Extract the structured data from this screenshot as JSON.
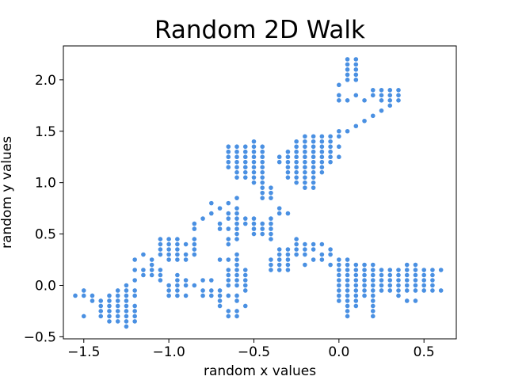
{
  "chart_data": {
    "type": "scatter",
    "title": "Random 2D Walk",
    "xlabel": "random x values",
    "ylabel": "random y values",
    "xlim": [
      -1.62,
      0.69
    ],
    "ylim": [
      -0.52,
      2.33
    ],
    "xticks": [
      -1.5,
      -1.0,
      -0.5,
      0.0,
      0.5
    ],
    "xtick_labels": [
      "−1.5",
      "−1.0",
      "−0.5",
      "0.0",
      "0.5"
    ],
    "yticks": [
      -0.5,
      0.0,
      0.5,
      1.0,
      1.5,
      2.0
    ],
    "ytick_labels": [
      "−0.5",
      "0.0",
      "0.5",
      "1.0",
      "1.5",
      "2.0"
    ],
    "grid": false,
    "marker_color": "#4a90e2",
    "points": [
      [
        -1.55,
        -0.1
      ],
      [
        -1.5,
        -0.05
      ],
      [
        -1.5,
        -0.1
      ],
      [
        -1.5,
        -0.3
      ],
      [
        -1.45,
        -0.1
      ],
      [
        -1.45,
        -0.15
      ],
      [
        -1.4,
        -0.15
      ],
      [
        -1.4,
        -0.2
      ],
      [
        -1.4,
        -0.25
      ],
      [
        -1.4,
        -0.3
      ],
      [
        -1.35,
        -0.1
      ],
      [
        -1.35,
        -0.15
      ],
      [
        -1.35,
        -0.2
      ],
      [
        -1.35,
        -0.25
      ],
      [
        -1.35,
        -0.3
      ],
      [
        -1.35,
        -0.35
      ],
      [
        -1.3,
        -0.05
      ],
      [
        -1.3,
        -0.1
      ],
      [
        -1.3,
        -0.15
      ],
      [
        -1.3,
        -0.2
      ],
      [
        -1.3,
        -0.25
      ],
      [
        -1.3,
        -0.3
      ],
      [
        -1.3,
        -0.35
      ],
      [
        -1.25,
        0.0
      ],
      [
        -1.25,
        -0.05
      ],
      [
        -1.25,
        -0.1
      ],
      [
        -1.25,
        -0.15
      ],
      [
        -1.25,
        -0.2
      ],
      [
        -1.25,
        -0.25
      ],
      [
        -1.25,
        -0.3
      ],
      [
        -1.25,
        -0.35
      ],
      [
        -1.25,
        -0.4
      ],
      [
        -1.2,
        -0.05
      ],
      [
        -1.2,
        -0.1
      ],
      [
        -1.2,
        -0.2
      ],
      [
        -1.2,
        -0.25
      ],
      [
        -1.2,
        -0.3
      ],
      [
        -1.2,
        -0.35
      ],
      [
        -1.2,
        0.05
      ],
      [
        -1.2,
        0.15
      ],
      [
        -1.2,
        0.25
      ],
      [
        -1.15,
        0.1
      ],
      [
        -1.15,
        0.15
      ],
      [
        -1.15,
        0.3
      ],
      [
        -1.1,
        0.1
      ],
      [
        -1.1,
        0.15
      ],
      [
        -1.1,
        0.2
      ],
      [
        -1.1,
        0.25
      ],
      [
        -1.05,
        0.3
      ],
      [
        -1.05,
        0.35
      ],
      [
        -1.05,
        0.4
      ],
      [
        -1.05,
        0.05
      ],
      [
        -1.05,
        0.1
      ],
      [
        -1.05,
        0.15
      ],
      [
        -1.0,
        0.0
      ],
      [
        -1.0,
        -0.05
      ],
      [
        -1.0,
        -0.1
      ],
      [
        -1.05,
        0.45
      ],
      [
        -1.0,
        0.45
      ],
      [
        -0.95,
        0.45
      ],
      [
        -1.0,
        0.25
      ],
      [
        -1.0,
        0.3
      ],
      [
        -1.0,
        0.35
      ],
      [
        -1.0,
        0.4
      ],
      [
        -0.95,
        0.25
      ],
      [
        -0.95,
        0.3
      ],
      [
        -0.95,
        0.35
      ],
      [
        -0.95,
        0.4
      ],
      [
        -0.9,
        0.25
      ],
      [
        -0.9,
        0.3
      ],
      [
        -0.9,
        0.4
      ],
      [
        -0.95,
        0.05
      ],
      [
        -0.95,
        0.1
      ],
      [
        -0.95,
        0.0
      ],
      [
        -0.95,
        -0.05
      ],
      [
        -0.95,
        -0.1
      ],
      [
        -0.9,
        0.0
      ],
      [
        -0.9,
        0.05
      ],
      [
        -0.9,
        -0.1
      ],
      [
        -0.85,
        0.3
      ],
      [
        -0.85,
        0.35
      ],
      [
        -0.85,
        0.4
      ],
      [
        -0.85,
        0.45
      ],
      [
        -0.85,
        0.55
      ],
      [
        -0.85,
        0.6
      ],
      [
        -0.85,
        0.0
      ],
      [
        -0.8,
        0.05
      ],
      [
        -0.75,
        0.05
      ],
      [
        -0.8,
        0.65
      ],
      [
        -0.75,
        0.7
      ],
      [
        -0.7,
        0.75
      ],
      [
        -0.65,
        0.8
      ],
      [
        -0.6,
        0.85
      ],
      [
        -0.75,
        0.8
      ],
      [
        -0.7,
        0.55
      ],
      [
        -0.65,
        0.55
      ],
      [
        -0.7,
        0.25
      ],
      [
        -0.65,
        0.25
      ],
      [
        -0.65,
        0.65
      ],
      [
        -0.65,
        0.7
      ],
      [
        -0.6,
        0.6
      ],
      [
        -0.6,
        0.65
      ],
      [
        -0.6,
        0.7
      ],
      [
        -0.6,
        0.75
      ],
      [
        -0.55,
        0.6
      ],
      [
        -0.55,
        0.65
      ],
      [
        -0.65,
        0.45
      ],
      [
        -0.65,
        0.4
      ],
      [
        -0.6,
        0.45
      ],
      [
        -0.6,
        0.5
      ],
      [
        -0.6,
        0.55
      ],
      [
        -0.65,
        0.0
      ],
      [
        -0.65,
        0.05
      ],
      [
        -0.65,
        0.1
      ],
      [
        -0.65,
        0.15
      ],
      [
        -0.6,
        0.0
      ],
      [
        -0.6,
        0.05
      ],
      [
        -0.6,
        0.1
      ],
      [
        -0.6,
        0.15
      ],
      [
        -0.6,
        0.2
      ],
      [
        -0.6,
        0.25
      ],
      [
        -0.6,
        0.3
      ],
      [
        -0.55,
        0.0
      ],
      [
        -0.55,
        0.05
      ],
      [
        -0.55,
        0.1
      ],
      [
        -0.55,
        0.15
      ],
      [
        -0.55,
        -0.05
      ],
      [
        -0.6,
        -0.1
      ],
      [
        -0.6,
        -0.15
      ],
      [
        -0.65,
        -0.1
      ],
      [
        -0.7,
        -0.1
      ],
      [
        -0.75,
        -0.1
      ],
      [
        -0.8,
        -0.1
      ],
      [
        -0.8,
        -0.05
      ],
      [
        -0.75,
        -0.05
      ],
      [
        -0.7,
        -0.05
      ],
      [
        -0.7,
        -0.15
      ],
      [
        -0.7,
        -0.2
      ],
      [
        -0.65,
        -0.25
      ],
      [
        -0.6,
        -0.25
      ],
      [
        -0.65,
        -0.3
      ],
      [
        -0.6,
        -0.3
      ],
      [
        -0.55,
        -0.2
      ],
      [
        -0.7,
        0.6
      ],
      [
        -0.65,
        1.2
      ],
      [
        -0.65,
        1.15
      ],
      [
        -0.65,
        1.25
      ],
      [
        -0.65,
        1.3
      ],
      [
        -0.65,
        1.35
      ],
      [
        -0.6,
        1.05
      ],
      [
        -0.6,
        1.1
      ],
      [
        -0.6,
        1.15
      ],
      [
        -0.6,
        1.2
      ],
      [
        -0.6,
        1.25
      ],
      [
        -0.6,
        1.3
      ],
      [
        -0.6,
        1.35
      ],
      [
        -0.55,
        1.05
      ],
      [
        -0.55,
        1.1
      ],
      [
        -0.55,
        1.15
      ],
      [
        -0.55,
        1.2
      ],
      [
        -0.55,
        1.25
      ],
      [
        -0.55,
        1.3
      ],
      [
        -0.55,
        1.35
      ],
      [
        -0.5,
        1.0
      ],
      [
        -0.5,
        1.05
      ],
      [
        -0.5,
        1.1
      ],
      [
        -0.5,
        1.15
      ],
      [
        -0.5,
        1.2
      ],
      [
        -0.5,
        1.25
      ],
      [
        -0.5,
        1.3
      ],
      [
        -0.5,
        1.35
      ],
      [
        -0.5,
        1.4
      ],
      [
        -0.45,
        0.95
      ],
      [
        -0.45,
        1.0
      ],
      [
        -0.45,
        1.05
      ],
      [
        -0.45,
        1.1
      ],
      [
        -0.45,
        1.15
      ],
      [
        -0.45,
        1.2
      ],
      [
        -0.45,
        1.25
      ],
      [
        -0.45,
        1.3
      ],
      [
        -0.45,
        1.35
      ],
      [
        -0.45,
        0.85
      ],
      [
        -0.45,
        0.9
      ],
      [
        -0.4,
        0.9
      ],
      [
        -0.4,
        0.95
      ],
      [
        -0.4,
        0.85
      ],
      [
        -0.5,
        0.6
      ],
      [
        -0.5,
        0.65
      ],
      [
        -0.45,
        0.6
      ],
      [
        -0.45,
        0.55
      ],
      [
        -0.4,
        0.55
      ],
      [
        -0.4,
        0.6
      ],
      [
        -0.4,
        0.65
      ],
      [
        -0.35,
        0.7
      ],
      [
        -0.35,
        0.75
      ],
      [
        -0.3,
        0.7
      ],
      [
        -0.5,
        0.55
      ],
      [
        -0.5,
        0.5
      ],
      [
        -0.45,
        0.5
      ],
      [
        -0.4,
        0.45
      ],
      [
        -0.4,
        0.5
      ],
      [
        -0.4,
        0.25
      ],
      [
        -0.35,
        0.25
      ],
      [
        -0.3,
        0.25
      ],
      [
        -0.4,
        0.2
      ],
      [
        -0.4,
        0.15
      ],
      [
        -0.35,
        0.15
      ],
      [
        -0.35,
        0.2
      ],
      [
        -0.3,
        0.15
      ],
      [
        -0.3,
        0.2
      ],
      [
        -0.35,
        0.3
      ],
      [
        -0.35,
        0.35
      ],
      [
        -0.3,
        0.3
      ],
      [
        -0.3,
        0.35
      ],
      [
        -0.25,
        0.3
      ],
      [
        -0.25,
        0.35
      ],
      [
        -0.25,
        0.4
      ],
      [
        -0.25,
        0.45
      ],
      [
        -0.2,
        0.4
      ],
      [
        -0.2,
        0.35
      ],
      [
        -0.2,
        0.3
      ],
      [
        -0.2,
        0.2
      ],
      [
        -0.15,
        0.25
      ],
      [
        -0.15,
        0.4
      ],
      [
        -0.15,
        0.35
      ],
      [
        -0.1,
        0.3
      ],
      [
        -0.1,
        0.25
      ],
      [
        -0.1,
        0.4
      ],
      [
        -0.05,
        0.35
      ],
      [
        -0.05,
        0.3
      ],
      [
        -0.05,
        0.2
      ],
      [
        0.0,
        0.25
      ],
      [
        0.0,
        0.2
      ],
      [
        0.0,
        0.15
      ],
      [
        0.0,
        0.1
      ],
      [
        0.0,
        0.05
      ],
      [
        0.0,
        0.0
      ],
      [
        0.0,
        -0.05
      ],
      [
        0.0,
        -0.1
      ],
      [
        0.0,
        -0.15
      ],
      [
        0.05,
        0.25
      ],
      [
        0.05,
        0.2
      ],
      [
        0.05,
        0.15
      ],
      [
        0.05,
        0.1
      ],
      [
        0.05,
        0.05
      ],
      [
        0.05,
        0.0
      ],
      [
        0.05,
        -0.05
      ],
      [
        0.05,
        -0.1
      ],
      [
        0.05,
        -0.15
      ],
      [
        0.05,
        -0.2
      ],
      [
        0.05,
        -0.25
      ],
      [
        0.05,
        -0.3
      ],
      [
        0.1,
        0.2
      ],
      [
        0.1,
        0.15
      ],
      [
        0.1,
        0.1
      ],
      [
        0.1,
        0.05
      ],
      [
        0.1,
        0.0
      ],
      [
        0.1,
        -0.05
      ],
      [
        0.1,
        -0.1
      ],
      [
        0.1,
        -0.15
      ],
      [
        0.1,
        -0.2
      ],
      [
        0.15,
        0.2
      ],
      [
        0.15,
        0.15
      ],
      [
        0.15,
        0.1
      ],
      [
        0.15,
        0.05
      ],
      [
        0.15,
        0.0
      ],
      [
        0.15,
        -0.05
      ],
      [
        0.15,
        -0.1
      ],
      [
        0.2,
        0.2
      ],
      [
        0.2,
        0.15
      ],
      [
        0.2,
        0.1
      ],
      [
        0.2,
        0.05
      ],
      [
        0.2,
        0.0
      ],
      [
        0.2,
        -0.05
      ],
      [
        0.2,
        -0.1
      ],
      [
        0.2,
        -0.15
      ],
      [
        0.2,
        -0.2
      ],
      [
        0.2,
        -0.25
      ],
      [
        0.2,
        -0.3
      ],
      [
        0.25,
        0.15
      ],
      [
        0.25,
        0.1
      ],
      [
        0.25,
        0.05
      ],
      [
        0.25,
        0.0
      ],
      [
        0.25,
        -0.05
      ],
      [
        0.3,
        0.15
      ],
      [
        0.3,
        0.1
      ],
      [
        0.3,
        0.05
      ],
      [
        0.3,
        0.0
      ],
      [
        0.3,
        -0.05
      ],
      [
        0.35,
        0.15
      ],
      [
        0.35,
        0.1
      ],
      [
        0.35,
        0.05
      ],
      [
        0.35,
        0.0
      ],
      [
        0.35,
        -0.05
      ],
      [
        0.35,
        -0.1
      ],
      [
        0.4,
        0.2
      ],
      [
        0.4,
        0.15
      ],
      [
        0.4,
        0.1
      ],
      [
        0.4,
        0.05
      ],
      [
        0.4,
        0.0
      ],
      [
        0.4,
        -0.05
      ],
      [
        0.4,
        -0.15
      ],
      [
        0.45,
        0.2
      ],
      [
        0.45,
        0.15
      ],
      [
        0.45,
        0.1
      ],
      [
        0.45,
        0.05
      ],
      [
        0.45,
        0.0
      ],
      [
        0.45,
        -0.05
      ],
      [
        0.45,
        -0.15
      ],
      [
        0.5,
        0.15
      ],
      [
        0.5,
        0.1
      ],
      [
        0.5,
        0.05
      ],
      [
        0.5,
        0.0
      ],
      [
        0.5,
        -0.05
      ],
      [
        0.55,
        0.15
      ],
      [
        0.55,
        0.1
      ],
      [
        0.55,
        0.05
      ],
      [
        0.55,
        0.0
      ],
      [
        0.55,
        -0.05
      ],
      [
        0.6,
        0.15
      ],
      [
        0.6,
        -0.05
      ],
      [
        -0.35,
        1.2
      ],
      [
        -0.35,
        1.25
      ],
      [
        -0.3,
        1.15
      ],
      [
        -0.3,
        1.2
      ],
      [
        -0.3,
        1.25
      ],
      [
        -0.3,
        1.3
      ],
      [
        -0.3,
        1.05
      ],
      [
        -0.3,
        1.1
      ],
      [
        -0.25,
        1.0
      ],
      [
        -0.25,
        1.05
      ],
      [
        -0.25,
        1.1
      ],
      [
        -0.25,
        1.15
      ],
      [
        -0.25,
        1.2
      ],
      [
        -0.25,
        1.25
      ],
      [
        -0.25,
        1.3
      ],
      [
        -0.25,
        1.35
      ],
      [
        -0.25,
        1.4
      ],
      [
        -0.2,
        0.95
      ],
      [
        -0.2,
        1.0
      ],
      [
        -0.2,
        1.05
      ],
      [
        -0.2,
        1.1
      ],
      [
        -0.2,
        1.15
      ],
      [
        -0.2,
        1.2
      ],
      [
        -0.2,
        1.25
      ],
      [
        -0.2,
        1.3
      ],
      [
        -0.2,
        1.35
      ],
      [
        -0.2,
        1.4
      ],
      [
        -0.2,
        1.45
      ],
      [
        -0.15,
        0.95
      ],
      [
        -0.15,
        1.0
      ],
      [
        -0.15,
        1.05
      ],
      [
        -0.15,
        1.1
      ],
      [
        -0.15,
        1.15
      ],
      [
        -0.15,
        1.2
      ],
      [
        -0.15,
        1.25
      ],
      [
        -0.15,
        1.3
      ],
      [
        -0.15,
        1.35
      ],
      [
        -0.15,
        1.4
      ],
      [
        -0.15,
        1.45
      ],
      [
        -0.1,
        1.1
      ],
      [
        -0.1,
        1.15
      ],
      [
        -0.1,
        1.2
      ],
      [
        -0.1,
        1.25
      ],
      [
        -0.1,
        1.3
      ],
      [
        -0.1,
        1.35
      ],
      [
        -0.1,
        1.4
      ],
      [
        -0.1,
        1.45
      ],
      [
        -0.05,
        1.2
      ],
      [
        -0.05,
        1.25
      ],
      [
        -0.05,
        1.3
      ],
      [
        -0.05,
        1.35
      ],
      [
        -0.05,
        1.4
      ],
      [
        -0.05,
        1.45
      ],
      [
        0.0,
        1.25
      ],
      [
        0.0,
        1.35
      ],
      [
        0.0,
        1.45
      ],
      [
        0.05,
        1.5
      ],
      [
        0.0,
        1.5
      ],
      [
        0.1,
        1.55
      ],
      [
        0.15,
        1.6
      ],
      [
        0.2,
        1.65
      ],
      [
        0.25,
        1.7
      ],
      [
        0.3,
        1.75
      ],
      [
        0.0,
        1.8
      ],
      [
        0.0,
        1.85
      ],
      [
        0.05,
        1.8
      ],
      [
        0.1,
        1.85
      ],
      [
        0.15,
        1.8
      ],
      [
        0.2,
        1.85
      ],
      [
        0.2,
        1.9
      ],
      [
        0.25,
        1.85
      ],
      [
        0.25,
        1.8
      ],
      [
        0.25,
        1.9
      ],
      [
        0.3,
        1.8
      ],
      [
        0.3,
        1.85
      ],
      [
        0.3,
        1.9
      ],
      [
        0.35,
        1.8
      ],
      [
        0.35,
        1.85
      ],
      [
        0.35,
        1.9
      ],
      [
        0.0,
        1.95
      ],
      [
        0.05,
        2.0
      ],
      [
        0.05,
        2.05
      ],
      [
        0.05,
        2.1
      ],
      [
        0.05,
        2.15
      ],
      [
        0.05,
        2.2
      ],
      [
        0.1,
        2.0
      ],
      [
        0.1,
        2.05
      ],
      [
        0.1,
        2.1
      ],
      [
        0.1,
        2.15
      ],
      [
        0.1,
        2.2
      ]
    ]
  }
}
